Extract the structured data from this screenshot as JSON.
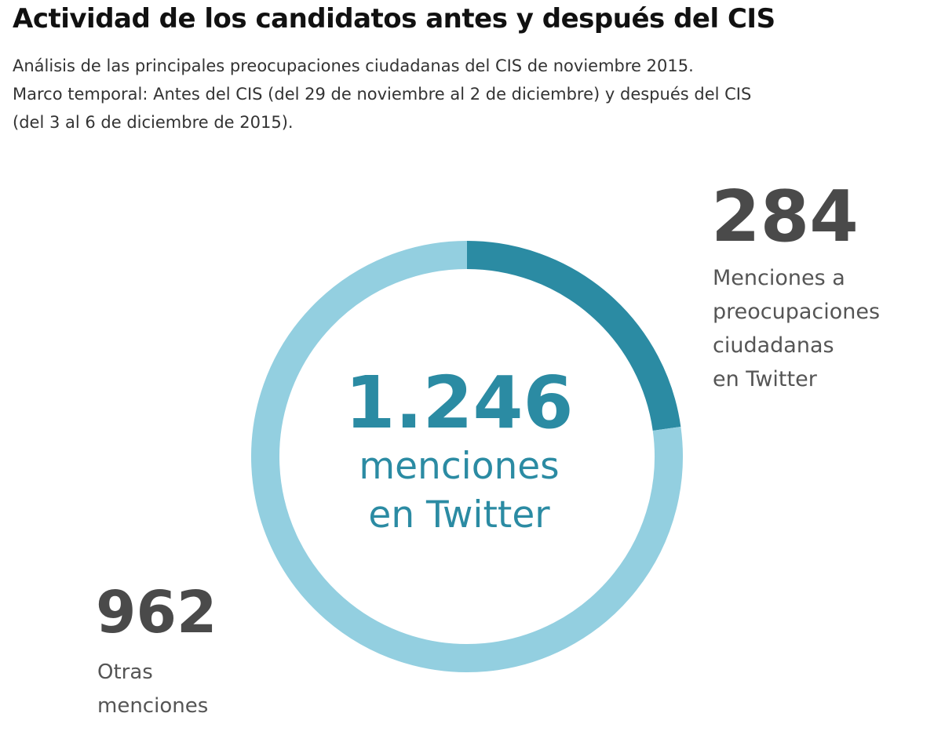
{
  "title": "Actividad de los candidatos antes y después del CIS",
  "subtitle": {
    "lines": [
      "Análisis de las principales preocupaciones ciudadanas del CIS de noviembre 2015.",
      "Marco temporal: Antes del CIS (del 29 de noviembre  al 2 de diciembre) y después del CIS",
      "(del 3 al 6 de diciembre de 2015)."
    ]
  },
  "center": {
    "value": "1.246",
    "label_lines": [
      "menciones",
      "en Twitter"
    ]
  },
  "callouts": {
    "preocupaciones": {
      "value": "284",
      "label_lines": [
        "Menciones a",
        "preocupaciones",
        "ciudadanas",
        "en Twitter"
      ]
    },
    "otras": {
      "value": "962",
      "label_lines": [
        "Otras",
        "menciones"
      ]
    }
  },
  "colors": {
    "highlight": "#2b8ba3",
    "base": "#93cfe0",
    "value_text": "#4a4a4a",
    "label_text": "#555555"
  },
  "chart_data": {
    "type": "pie",
    "total": 1246,
    "categories": [
      "Menciones a preocupaciones ciudadanas en Twitter",
      "Otras menciones"
    ],
    "values": [
      284,
      962
    ],
    "colors": [
      "#2b8ba3",
      "#93cfe0"
    ],
    "start": "top",
    "direction": "clockwise"
  }
}
